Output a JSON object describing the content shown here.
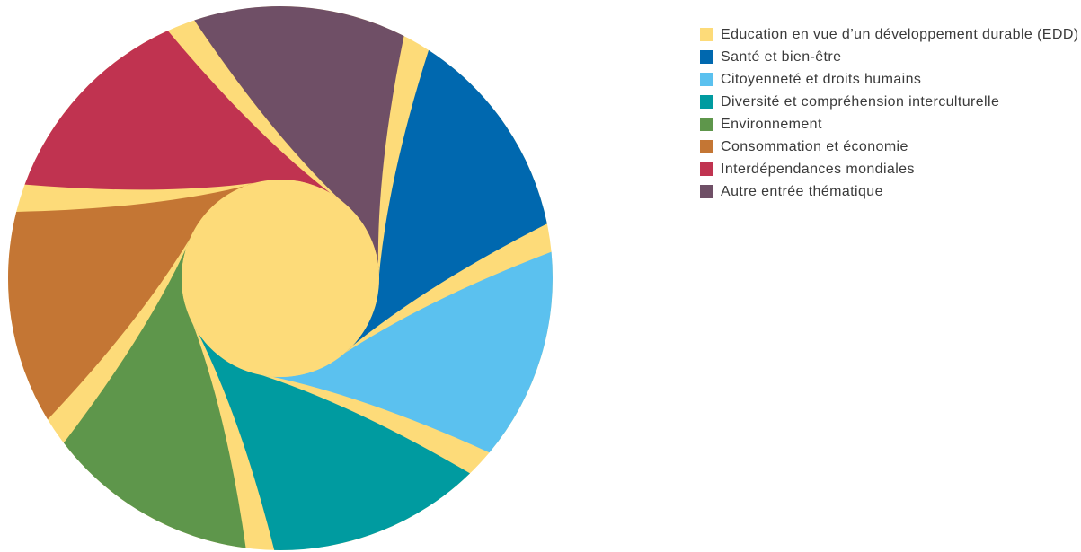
{
  "center": {
    "label": "Education en vue d’un développement durable (EDD)",
    "color": "#FDDB79"
  },
  "gap_color": "#FDDB79",
  "themes": [
    {
      "label": "Santé et bien-être",
      "color": "#0068AF"
    },
    {
      "label": "Citoyenneté et droits humains",
      "color": "#5BC1EF"
    },
    {
      "label": "Diversité et compréhension interculturelle",
      "color": "#009BA0"
    },
    {
      "label": "Environnement",
      "color": "#5E964B"
    },
    {
      "label": "Consommation et économie",
      "color": "#C47634"
    },
    {
      "label": "Interdépendances mondiales",
      "color": "#C03350"
    },
    {
      "label": "Autre entrée thématique",
      "color": "#6F4F66"
    }
  ]
}
